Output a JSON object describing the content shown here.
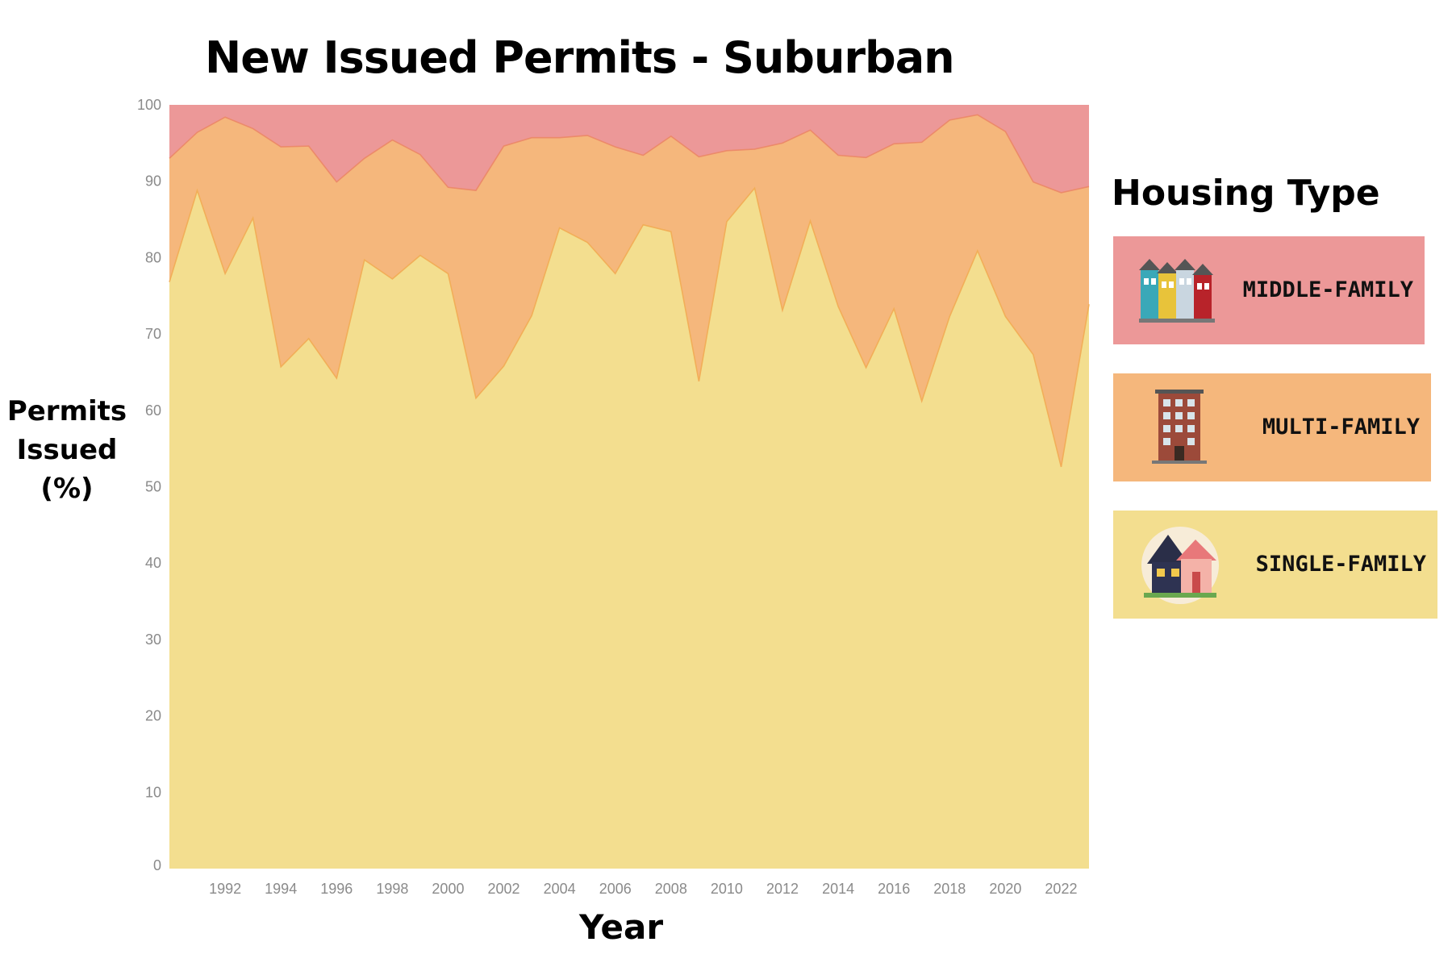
{
  "chart_data": {
    "type": "area",
    "stacked": true,
    "title": "New Issued Permits - Suburban",
    "ylabel": [
      "Permits",
      "Issued",
      "(%)"
    ],
    "xlabel": "Year",
    "ylim": [
      0,
      100
    ],
    "xlim": [
      1990,
      2023
    ],
    "yticks": [
      0,
      10,
      20,
      30,
      40,
      50,
      60,
      70,
      80,
      90,
      100
    ],
    "xticks": [
      1992,
      1994,
      1996,
      1998,
      2000,
      2002,
      2004,
      2006,
      2008,
      2010,
      2012,
      2014,
      2016,
      2018,
      2020,
      2022
    ],
    "x": [
      1990,
      1991,
      1992,
      1993,
      1994,
      1995,
      1996,
      1997,
      1998,
      1999,
      2000,
      2001,
      2002,
      2003,
      2004,
      2005,
      2006,
      2007,
      2008,
      2009,
      2010,
      2011,
      2012,
      2013,
      2014,
      2015,
      2016,
      2017,
      2018,
      2019,
      2020,
      2021,
      2022,
      2023
    ],
    "series": [
      {
        "name": "Single-family",
        "color": "#f3de8f",
        "line_color": "#f2ae58",
        "cumulative": [
          76.8,
          88.8,
          77.9,
          85.2,
          65.7,
          69.4,
          64.2,
          79.7,
          77.2,
          80.3,
          77.9,
          61.6,
          65.8,
          72.4,
          83.9,
          82.0,
          77.9,
          84.3,
          83.4,
          63.8,
          84.7,
          89.1,
          73.1,
          84.8,
          73.6,
          65.6,
          73.3,
          61.2,
          72.3,
          80.9,
          72.3,
          67.3,
          52.6,
          73.9
        ]
      },
      {
        "name": "Multi-family",
        "color": "#f5b77c",
        "line_color": "#ec8a6a",
        "cumulative": [
          93.0,
          96.4,
          98.4,
          96.9,
          94.5,
          94.6,
          89.9,
          93.0,
          95.4,
          93.5,
          89.2,
          88.8,
          94.6,
          95.7,
          95.7,
          96.0,
          94.5,
          93.4,
          95.9,
          93.2,
          94.0,
          94.2,
          95.0,
          96.7,
          93.4,
          93.1,
          94.9,
          95.1,
          98.0,
          98.7,
          96.5,
          89.9,
          88.5,
          89.3
        ]
      },
      {
        "name": "Middle-family",
        "color": "#ec9898",
        "cumulative": [
          100,
          100,
          100,
          100,
          100,
          100,
          100,
          100,
          100,
          100,
          100,
          100,
          100,
          100,
          100,
          100,
          100,
          100,
          100,
          100,
          100,
          100,
          100,
          100,
          100,
          100,
          100,
          100,
          100,
          100,
          100,
          100,
          100,
          100
        ]
      }
    ],
    "legend": {
      "title": "Housing Type",
      "placement": "right",
      "items": [
        {
          "label": "MIDDLE-FAMILY",
          "color": "#ec9898",
          "icon": "row-houses-icon"
        },
        {
          "label": "MULTI-FAMILY",
          "color": "#f5b77c",
          "icon": "apartment-building-icon"
        },
        {
          "label": "SINGLE-FAMILY",
          "color": "#f3de8f",
          "icon": "house-icon"
        }
      ]
    }
  }
}
